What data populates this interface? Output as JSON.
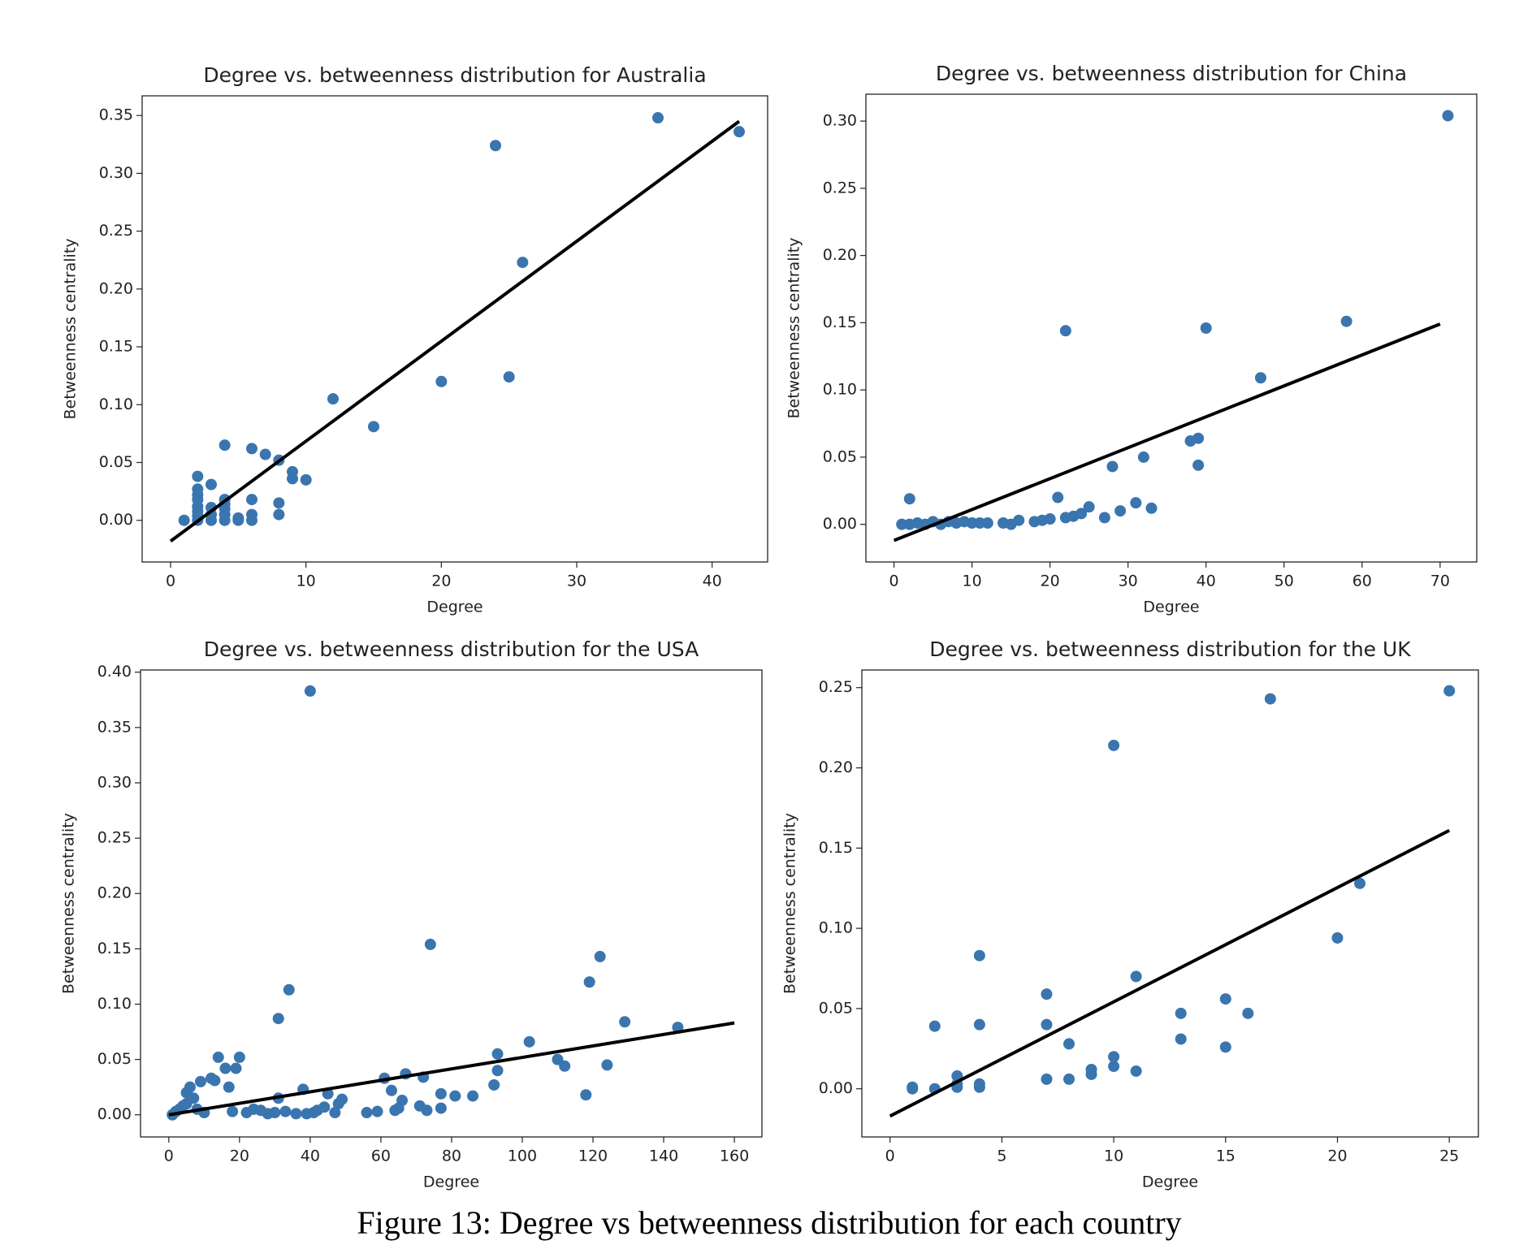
{
  "caption": "Figure 13: Degree vs betweenness distribution for each country",
  "chart_data": [
    {
      "type": "scatter",
      "title": "Degree vs. betweenness distribution for Australia",
      "x_label": "Degree",
      "y_label": "Betweenness centrality",
      "color": "#3a75af",
      "fit_color": "#000000",
      "xlim": [
        -2.1,
        44.1
      ],
      "ylim": [
        -0.036,
        0.367
      ],
      "xticks": [
        0,
        10,
        20,
        30,
        40
      ],
      "yticks": [
        {
          "value": 0,
          "label": "0.00"
        },
        {
          "value": 0.05,
          "label": "0.05"
        },
        {
          "value": 0.1,
          "label": "0.10"
        },
        {
          "value": 0.15,
          "label": "0.15"
        },
        {
          "value": 0.2,
          "label": "0.20"
        },
        {
          "value": 0.25,
          "label": "0.25"
        },
        {
          "value": 0.3,
          "label": "0.30"
        },
        {
          "value": 0.35,
          "label": "0.35"
        }
      ],
      "x": [
        1,
        2,
        2,
        2,
        2,
        2,
        2,
        2,
        2,
        3,
        3,
        3,
        3,
        4,
        4,
        4,
        4,
        4,
        4,
        5,
        5,
        6,
        6,
        6,
        6,
        7,
        8,
        8,
        8,
        9,
        9,
        10,
        12,
        15,
        20,
        24,
        25,
        26,
        36,
        42
      ],
      "y": [
        0,
        0.038,
        0.027,
        0.022,
        0.018,
        0.012,
        0.008,
        0.004,
        0,
        0.031,
        0.011,
        0.005,
        0,
        0.065,
        0.018,
        0.014,
        0.01,
        0.005,
        0,
        0.002,
        0,
        0.062,
        0.018,
        0.005,
        0,
        0.057,
        0.052,
        0.015,
        0.005,
        0.042,
        0.036,
        0.035,
        0.105,
        0.081,
        0.12,
        0.324,
        0.124,
        0.223,
        0.348,
        0.336
      ],
      "fit": {
        "x": [
          0,
          42
        ],
        "y": [
          -0.018,
          0.345
        ]
      }
    },
    {
      "type": "scatter",
      "title": "Degree vs. betweenness distribution for China",
      "x_label": "Degree",
      "y_label": "Betweenness centrality",
      "color": "#3a75af",
      "fit_color": "#000000",
      "xlim": [
        -3.6,
        74.7
      ],
      "ylim": [
        -0.028,
        0.32
      ],
      "xticks": [
        0,
        10,
        20,
        30,
        40,
        50,
        60,
        70
      ],
      "yticks": [
        {
          "value": 0,
          "label": "0.00"
        },
        {
          "value": 0.05,
          "label": "0.05"
        },
        {
          "value": 0.1,
          "label": "0.10"
        },
        {
          "value": 0.15,
          "label": "0.15"
        },
        {
          "value": 0.2,
          "label": "0.20"
        },
        {
          "value": 0.25,
          "label": "0.25"
        },
        {
          "value": 0.3,
          "label": "0.30"
        }
      ],
      "x": [
        1,
        2,
        2,
        3,
        4,
        5,
        6,
        7,
        8,
        9,
        10,
        11,
        12,
        14,
        15,
        16,
        18,
        19,
        20,
        21,
        22,
        22,
        23,
        24,
        25,
        27,
        28,
        29,
        31,
        32,
        33,
        38,
        39,
        39,
        40,
        47,
        58,
        71
      ],
      "y": [
        0,
        0.019,
        0,
        0.001,
        0,
        0.002,
        0,
        0.002,
        0.001,
        0.002,
        0.001,
        0.001,
        0.001,
        0.001,
        0,
        0.003,
        0.002,
        0.003,
        0.004,
        0.02,
        0.005,
        0.144,
        0.006,
        0.008,
        0.013,
        0.005,
        0.043,
        0.01,
        0.016,
        0.05,
        0.012,
        0.062,
        0.064,
        0.044,
        0.146,
        0.109,
        0.151,
        0.304
      ],
      "fit": {
        "x": [
          0,
          70
        ],
        "y": [
          -0.012,
          0.149
        ]
      }
    },
    {
      "type": "scatter",
      "title": "Degree vs. betweenness distribution for the USA",
      "x_label": "Degree",
      "y_label": "Betweenness centrality",
      "color": "#3a75af",
      "fit_color": "#000000",
      "xlim": [
        -8,
        167.8
      ],
      "ylim": [
        -0.02,
        0.402
      ],
      "xticks": [
        0,
        20,
        40,
        60,
        80,
        100,
        120,
        140,
        160
      ],
      "yticks": [
        {
          "value": 0,
          "label": "0.00"
        },
        {
          "value": 0.05,
          "label": "0.05"
        },
        {
          "value": 0.1,
          "label": "0.10"
        },
        {
          "value": 0.15,
          "label": "0.15"
        },
        {
          "value": 0.2,
          "label": "0.20"
        },
        {
          "value": 0.25,
          "label": "0.25"
        },
        {
          "value": 0.3,
          "label": "0.30"
        },
        {
          "value": 0.35,
          "label": "0.35"
        },
        {
          "value": 0.4,
          "label": "0.40"
        }
      ],
      "x": [
        1,
        2,
        3,
        4,
        5,
        5,
        6,
        7,
        8,
        9,
        10,
        12,
        13,
        14,
        16,
        17,
        19,
        20,
        18,
        22,
        24,
        26,
        28,
        30,
        31,
        31,
        34,
        33,
        36,
        38,
        39,
        40,
        41,
        42,
        44,
        45,
        47,
        48,
        49,
        56,
        59,
        61,
        63,
        64,
        65,
        66,
        67,
        71,
        72,
        73,
        74,
        77,
        77,
        81,
        86,
        92,
        93,
        93,
        102,
        110,
        112,
        118,
        119,
        122,
        124,
        129,
        144
      ],
      "y": [
        0,
        0.003,
        0.005,
        0.008,
        0.01,
        0.02,
        0.025,
        0.015,
        0.005,
        0.03,
        0.002,
        0.033,
        0.031,
        0.052,
        0.042,
        0.025,
        0.042,
        0.052,
        0.003,
        0.002,
        0.005,
        0.004,
        0.001,
        0.002,
        0.087,
        0.015,
        0.113,
        0.003,
        0.001,
        0.023,
        0.001,
        0.383,
        0.002,
        0.004,
        0.007,
        0.019,
        0.002,
        0.01,
        0.014,
        0.002,
        0.003,
        0.033,
        0.022,
        0.004,
        0.006,
        0.013,
        0.037,
        0.008,
        0.034,
        0.004,
        0.154,
        0.006,
        0.019,
        0.017,
        0.017,
        0.027,
        0.055,
        0.04,
        0.066,
        0.05,
        0.044,
        0.018,
        0.12,
        0.143,
        0.045,
        0.084,
        0.079
      ],
      "fit": {
        "x": [
          0,
          160
        ],
        "y": [
          0,
          0.083
        ]
      }
    },
    {
      "type": "scatter",
      "title": "Degree vs. betweenness distribution for the UK",
      "x_label": "Degree",
      "y_label": "Betweenness centrality",
      "color": "#3a75af",
      "fit_color": "#000000",
      "xlim": [
        -1.26,
        26.3
      ],
      "ylim": [
        -0.03,
        0.261
      ],
      "xticks": [
        0,
        5,
        10,
        15,
        20,
        25
      ],
      "yticks": [
        {
          "value": 0,
          "label": "0.00"
        },
        {
          "value": 0.05,
          "label": "0.05"
        },
        {
          "value": 0.1,
          "label": "0.10"
        },
        {
          "value": 0.15,
          "label": "0.15"
        },
        {
          "value": 0.2,
          "label": "0.20"
        },
        {
          "value": 0.25,
          "label": "0.25"
        }
      ],
      "x": [
        1,
        1,
        2,
        2,
        3,
        3,
        3,
        4,
        4,
        4,
        4,
        7,
        7,
        7,
        8,
        8,
        9,
        9,
        10,
        10,
        10,
        11,
        11,
        13,
        13,
        15,
        15,
        16,
        17,
        20,
        21,
        25
      ],
      "y": [
        0,
        0.001,
        0.039,
        0,
        0.008,
        0.003,
        0.001,
        0.083,
        0.04,
        0.003,
        0.001,
        0.059,
        0.04,
        0.006,
        0.028,
        0.006,
        0.012,
        0.009,
        0.214,
        0.02,
        0.014,
        0.07,
        0.011,
        0.047,
        0.031,
        0.056,
        0.026,
        0.047,
        0.243,
        0.094,
        0.128,
        0.248
      ],
      "fit": {
        "x": [
          0,
          25
        ],
        "y": [
          -0.017,
          0.161
        ]
      }
    }
  ]
}
